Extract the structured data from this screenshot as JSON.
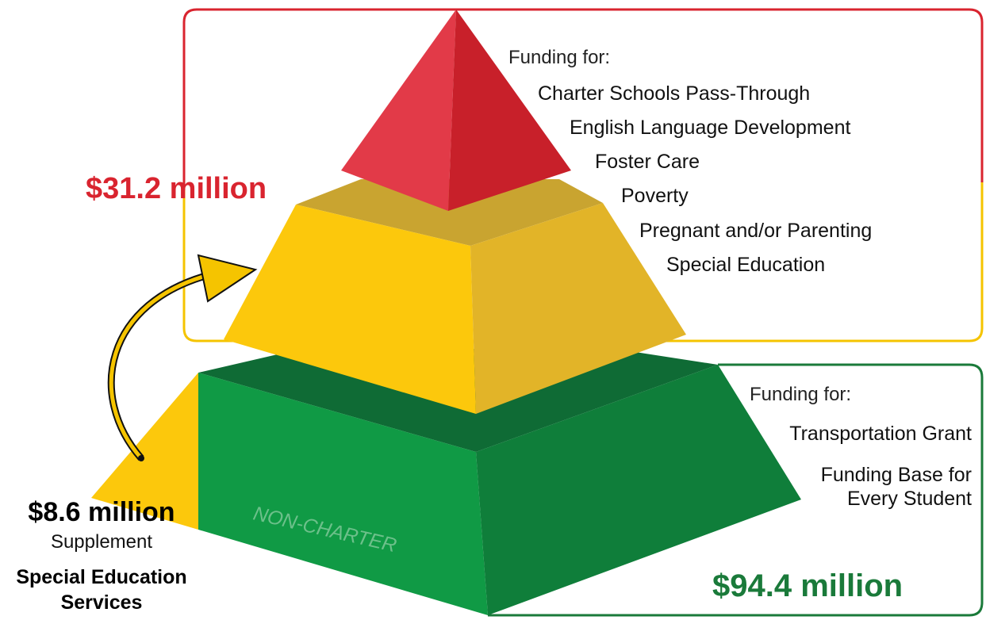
{
  "top": {
    "amount": "$31.2 million",
    "heading": "Funding for:",
    "items": [
      "Charter Schools Pass-Through",
      "English Language Development",
      "Foster Care",
      "Poverty",
      "Pregnant and/or Parenting",
      "Special Education"
    ]
  },
  "bottom": {
    "heading": "Funding for:",
    "items": [
      [
        "Transportation Grant"
      ],
      [
        "Funding Base for",
        "Every Student"
      ]
    ],
    "amount": "$94.4 million",
    "label": "NON-CHARTER"
  },
  "supplement": {
    "amount": "$8.6 million",
    "label": "Supplement",
    "purpose": [
      "Special Education",
      "Services"
    ]
  }
}
